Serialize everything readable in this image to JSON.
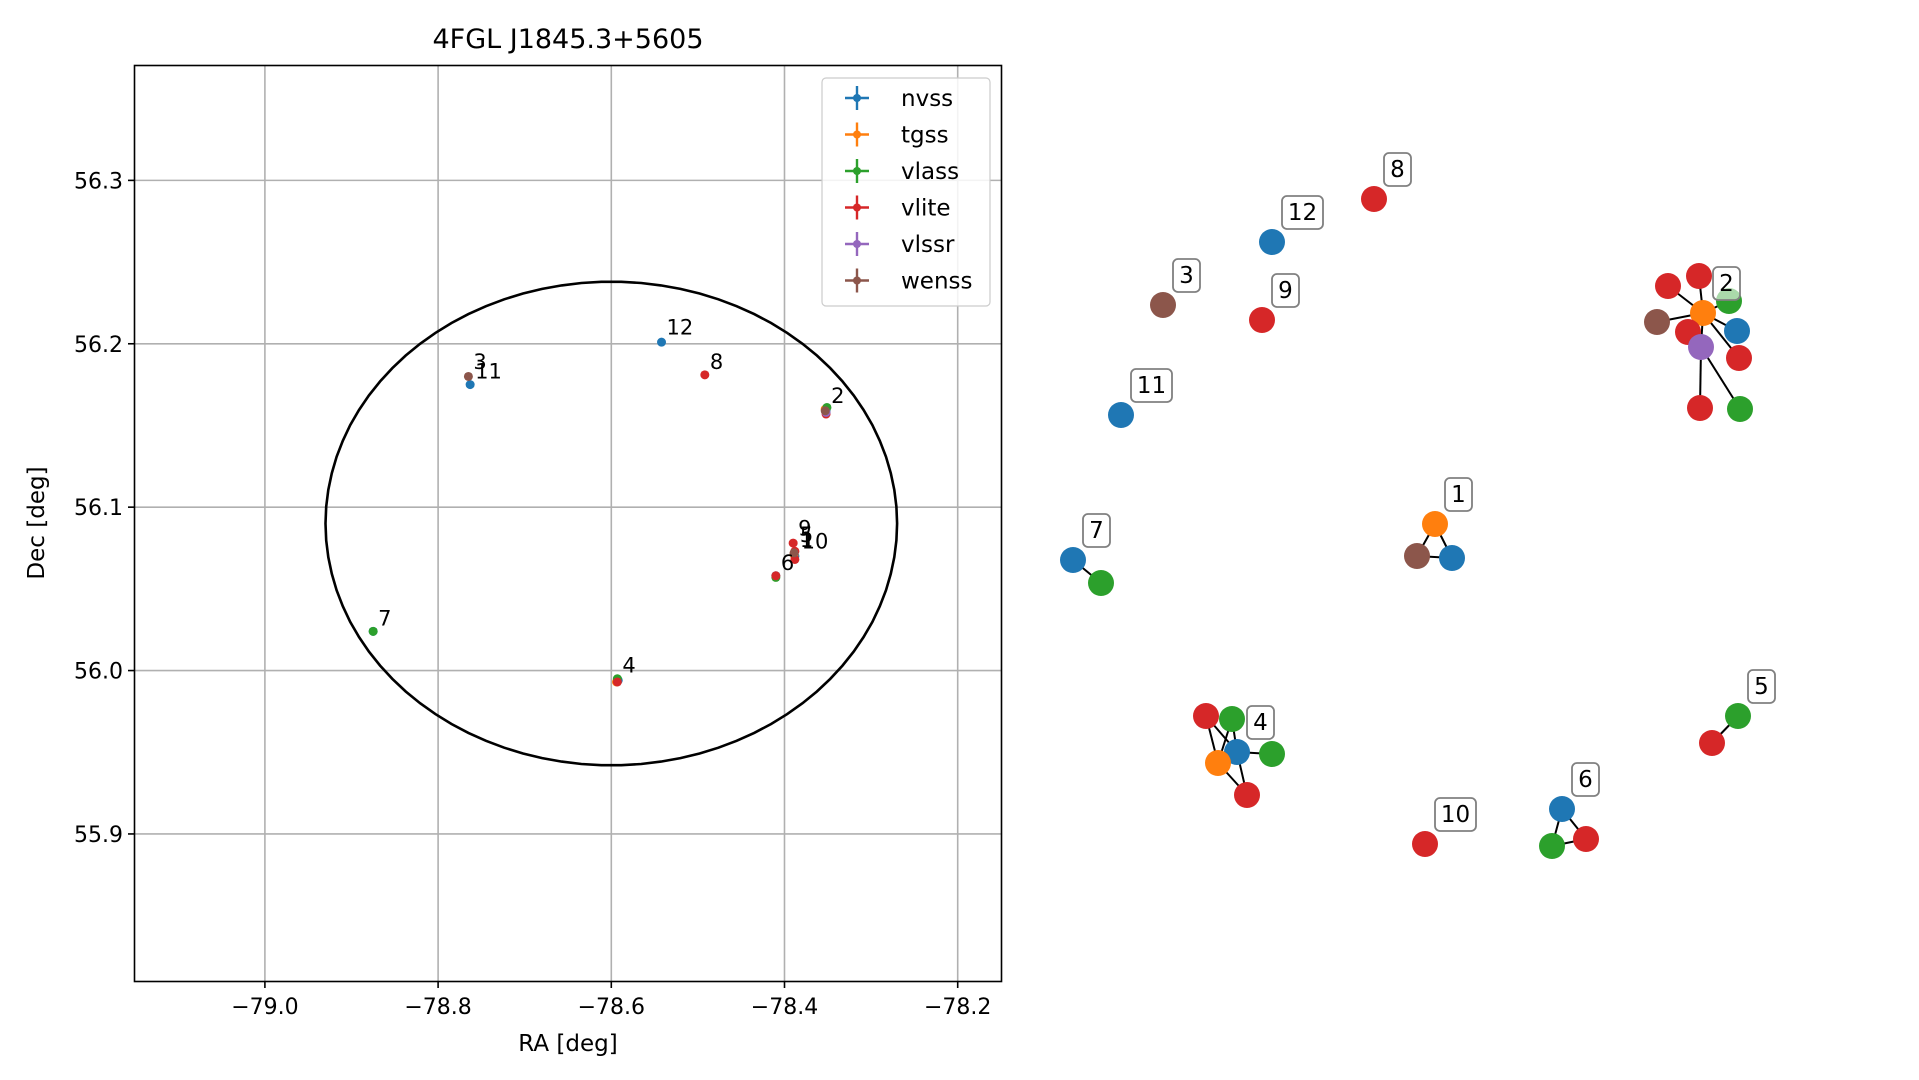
{
  "chart_data": [
    {
      "type": "scatter",
      "title": "4FGL J1845.3+5605",
      "xlabel": "RA [deg]",
      "ylabel": "Dec [deg]",
      "xlim": [
        -79.15,
        -78.15
      ],
      "ylim": [
        55.81,
        56.37
      ],
      "xticks": [
        -79.0,
        -78.8,
        -78.6,
        -78.4,
        -78.2
      ],
      "xtick_labels": [
        "−79.0",
        "−78.8",
        "−78.6",
        "−78.4",
        "−78.2"
      ],
      "yticks": [
        55.9,
        56.0,
        56.1,
        56.2,
        56.3
      ],
      "ytick_labels": [
        "55.9",
        "56.0",
        "56.1",
        "56.2",
        "56.3"
      ],
      "grid": true,
      "legend_position": "top-right",
      "ellipse": {
        "center_ra": -78.6,
        "center_dec": 56.09,
        "ra_semi_axis": 0.33,
        "dec_semi_axis": 0.148,
        "color": "#000000"
      },
      "series": [
        {
          "name": "nvss",
          "color": "#1f77b4",
          "points": [
            {
              "x": -78.763,
              "y": 56.175
            },
            {
              "x": -78.542,
              "y": 56.201
            },
            {
              "x": -78.592,
              "y": 55.994
            },
            {
              "x": -78.352,
              "y": 56.159
            },
            {
              "x": -78.41,
              "y": 56.058
            },
            {
              "x": -78.388,
              "y": 56.07
            },
            {
              "x": -78.875,
              "y": 56.024
            }
          ]
        },
        {
          "name": "tgss",
          "color": "#ff7f0e",
          "points": [
            {
              "x": -78.594,
              "y": 55.993
            },
            {
              "x": -78.353,
              "y": 56.16
            },
            {
              "x": -78.389,
              "y": 56.071
            }
          ]
        },
        {
          "name": "vlass",
          "color": "#2ca02c",
          "points": [
            {
              "x": -78.593,
              "y": 55.995
            },
            {
              "x": -78.351,
              "y": 56.161
            },
            {
              "x": -78.41,
              "y": 56.057
            },
            {
              "x": -78.875,
              "y": 56.024
            }
          ]
        },
        {
          "name": "vlite",
          "color": "#d62728",
          "points": [
            {
              "x": -78.593,
              "y": 55.993
            },
            {
              "x": -78.492,
              "y": 56.181
            },
            {
              "x": -78.352,
              "y": 56.157
            },
            {
              "x": -78.41,
              "y": 56.058
            },
            {
              "x": -78.39,
              "y": 56.078
            },
            {
              "x": -78.388,
              "y": 56.068
            },
            {
              "x": -78.388,
              "y": 56.073
            }
          ]
        },
        {
          "name": "vlssr",
          "color": "#9467bd",
          "points": [
            {
              "x": -78.352,
              "y": 56.158
            }
          ]
        },
        {
          "name": "wenss",
          "color": "#8c564b",
          "points": [
            {
              "x": -78.765,
              "y": 56.18
            },
            {
              "x": -78.353,
              "y": 56.159
            },
            {
              "x": -78.389,
              "y": 56.072
            }
          ]
        }
      ],
      "annotations": [
        {
          "text": "1",
          "x": -78.388,
          "y": 56.072
        },
        {
          "text": "2",
          "x": -78.352,
          "y": 56.16
        },
        {
          "text": "3",
          "x": -78.765,
          "y": 56.181
        },
        {
          "text": "4",
          "x": -78.593,
          "y": 55.995
        },
        {
          "text": "5",
          "x": -78.388,
          "y": 56.075
        },
        {
          "text": "6",
          "x": -78.41,
          "y": 56.058
        },
        {
          "text": "7",
          "x": -78.875,
          "y": 56.024
        },
        {
          "text": "8",
          "x": -78.492,
          "y": 56.181
        },
        {
          "text": "9",
          "x": -78.39,
          "y": 56.079
        },
        {
          "text": "10",
          "x": -78.386,
          "y": 56.071
        },
        {
          "text": "11",
          "x": -78.763,
          "y": 56.175
        },
        {
          "text": "12",
          "x": -78.542,
          "y": 56.202
        }
      ]
    },
    {
      "type": "network",
      "description_free": true,
      "nodes": [
        {
          "id": "n1",
          "survey": "tgss",
          "label": "1"
        },
        {
          "id": "n1a",
          "survey": "wenss"
        },
        {
          "id": "n1b",
          "survey": "nvss"
        },
        {
          "id": "n2",
          "survey": "tgss",
          "label": "2"
        },
        {
          "id": "n2a",
          "survey": "vlite"
        },
        {
          "id": "n2b",
          "survey": "vlite"
        },
        {
          "id": "n2c",
          "survey": "vlass"
        },
        {
          "id": "n2d",
          "survey": "wenss"
        },
        {
          "id": "n2e",
          "survey": "vlite"
        },
        {
          "id": "n2f",
          "survey": "nvss"
        },
        {
          "id": "n2g",
          "survey": "vlssr"
        },
        {
          "id": "n2h",
          "survey": "vlite"
        },
        {
          "id": "n2i",
          "survey": "vlite"
        },
        {
          "id": "n2j",
          "survey": "vlass"
        },
        {
          "id": "n3",
          "survey": "wenss",
          "label": "3"
        },
        {
          "id": "n4",
          "survey": "nvss",
          "label": "4"
        },
        {
          "id": "n4a",
          "survey": "vlite"
        },
        {
          "id": "n4b",
          "survey": "vlass"
        },
        {
          "id": "n4c",
          "survey": "tgss"
        },
        {
          "id": "n4d",
          "survey": "vlass"
        },
        {
          "id": "n4e",
          "survey": "vlite"
        },
        {
          "id": "n5",
          "survey": "vlass",
          "label": "5"
        },
        {
          "id": "n5a",
          "survey": "vlite"
        },
        {
          "id": "n6",
          "survey": "nvss",
          "label": "6"
        },
        {
          "id": "n6a",
          "survey": "vlass"
        },
        {
          "id": "n6b",
          "survey": "vlite"
        },
        {
          "id": "n7",
          "survey": "nvss",
          "label": "7"
        },
        {
          "id": "n7a",
          "survey": "vlass"
        },
        {
          "id": "n8",
          "survey": "vlite",
          "label": "8"
        },
        {
          "id": "n9",
          "survey": "vlite",
          "label": "9"
        },
        {
          "id": "n10",
          "survey": "vlite",
          "label": "10"
        },
        {
          "id": "n11",
          "survey": "nvss",
          "label": "11"
        },
        {
          "id": "n12",
          "survey": "nvss",
          "label": "12"
        }
      ],
      "edges": [
        [
          "n1",
          "n1a"
        ],
        [
          "n1",
          "n1b"
        ],
        [
          "n1a",
          "n1b"
        ],
        [
          "n2",
          "n2a"
        ],
        [
          "n2",
          "n2b"
        ],
        [
          "n2",
          "n2c"
        ],
        [
          "n2",
          "n2d"
        ],
        [
          "n2",
          "n2e"
        ],
        [
          "n2",
          "n2f"
        ],
        [
          "n2",
          "n2g"
        ],
        [
          "n2",
          "n2h"
        ],
        [
          "n2g",
          "n2i"
        ],
        [
          "n2g",
          "n2j"
        ],
        [
          "n2e",
          "n2g"
        ],
        [
          "n4",
          "n4a"
        ],
        [
          "n4",
          "n4b"
        ],
        [
          "n4",
          "n4c"
        ],
        [
          "n4",
          "n4d"
        ],
        [
          "n4",
          "n4e"
        ],
        [
          "n4a",
          "n4c"
        ],
        [
          "n4b",
          "n4c"
        ],
        [
          "n4c",
          "n4e"
        ],
        [
          "n5",
          "n5a"
        ],
        [
          "n6",
          "n6a"
        ],
        [
          "n6",
          "n6b"
        ],
        [
          "n6a",
          "n6b"
        ],
        [
          "n7",
          "n7a"
        ]
      ]
    }
  ],
  "colors": {
    "nvss": "#1f77b4",
    "tgss": "#ff7f0e",
    "vlass": "#2ca02c",
    "vlite": "#d62728",
    "vlssr": "#9467bd",
    "wenss": "#8c564b"
  }
}
